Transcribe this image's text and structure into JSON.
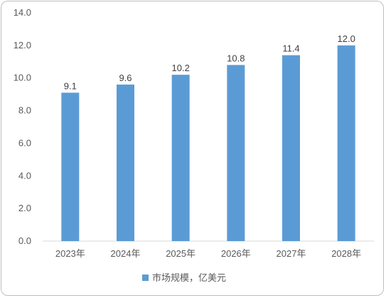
{
  "chart_data": {
    "type": "bar",
    "categories": [
      "2023年",
      "2024年",
      "2025年",
      "2026年",
      "2027年",
      "2028年"
    ],
    "series": [
      {
        "name": "市场规模，亿美元",
        "values": [
          9.1,
          9.6,
          10.2,
          10.8,
          11.4,
          12.0
        ],
        "color": "#5b9bd5"
      }
    ],
    "value_labels": [
      "9.1",
      "9.6",
      "10.2",
      "10.8",
      "11.4",
      "12.0"
    ],
    "ylim": [
      0,
      14
    ],
    "y_ticks": [
      "0.0",
      "2.0",
      "4.0",
      "6.0",
      "8.0",
      "10.0",
      "12.0",
      "14.0"
    ],
    "grid": false,
    "legend_position": "bottom"
  }
}
